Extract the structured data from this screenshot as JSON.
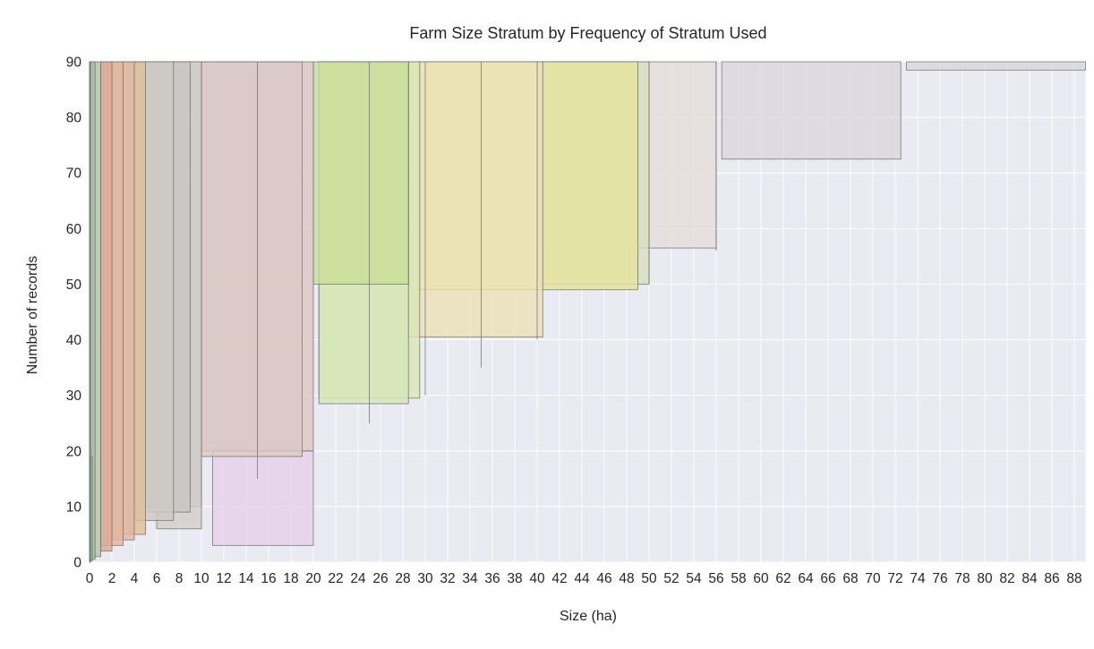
{
  "chart_data": {
    "type": "bar",
    "title": "Farm Size Stratum by Frequency of Stratum Used",
    "xlabel": "Size (ha)",
    "ylabel": "Number of records",
    "xlim": [
      0,
      89
    ],
    "ylim": [
      0,
      90
    ],
    "xticks": [
      "0",
      "2",
      "4",
      "6",
      "8",
      "10",
      "12",
      "14",
      "16",
      "18",
      "20",
      "22",
      "24",
      "26",
      "28",
      "30",
      "32",
      "34",
      "36",
      "38",
      "40",
      "42",
      "44",
      "46",
      "48",
      "50",
      "52",
      "54",
      "56",
      "58",
      "60",
      "62",
      "64",
      "66",
      "68",
      "70",
      "72",
      "74",
      "76",
      "78",
      "80",
      "82",
      "84",
      "86",
      "88"
    ],
    "yticks": [
      "0",
      "10",
      "20",
      "30",
      "40",
      "50",
      "60",
      "70",
      "80",
      "90"
    ],
    "grid": true,
    "background_color": "#eaeaf2",
    "rects": [
      {
        "x0": 73,
        "x1": 89,
        "y0": 88.5,
        "y1": 90,
        "color": "#d9d7dc"
      },
      {
        "x0": 56.5,
        "x1": 72.5,
        "y0": 72.5,
        "y1": 90,
        "color": "#dad7dc"
      },
      {
        "x0": 40,
        "x1": 56,
        "y0": 56.5,
        "y1": 90,
        "color": "#e3ddd8"
      },
      {
        "x0": 40.5,
        "x1": 50,
        "y0": 50,
        "y1": 90,
        "color": "#d8dfbd"
      },
      {
        "x0": 29.5,
        "x1": 49,
        "y0": 49,
        "y1": 90,
        "color": "#e5e39e"
      },
      {
        "x0": 28.5,
        "x1": 40.5,
        "y0": 40.5,
        "y1": 90,
        "color": "#ece1b6"
      },
      {
        "x0": 20.5,
        "x1": 29.5,
        "y0": 29.5,
        "y1": 90,
        "color": "#d9e7b3"
      },
      {
        "x0": 20.5,
        "x1": 28.5,
        "y0": 28.5,
        "y1": 90,
        "color": "#d6e6b8"
      },
      {
        "x0": 20,
        "x1": 28.5,
        "y0": 50,
        "y1": 90,
        "color": "#c9df96"
      },
      {
        "x0": 11,
        "x1": 20,
        "y0": 3,
        "y1": 20,
        "color": "#e6d0e8"
      },
      {
        "x0": 10,
        "x1": 20,
        "y0": 20,
        "y1": 90,
        "color": "#dcc5c0"
      },
      {
        "x0": 10,
        "x1": 19,
        "y0": 19,
        "y1": 90,
        "color": "#dbc9c4"
      },
      {
        "x0": 5,
        "x1": 10,
        "y0": 10,
        "y1": 90,
        "color": "#cbc5c0"
      },
      {
        "x0": 6,
        "x1": 10,
        "y0": 6,
        "y1": 90,
        "color": "#d2cdc8"
      },
      {
        "x0": 4,
        "x1": 9,
        "y0": 9,
        "y1": 90,
        "color": "#c9c6c1"
      },
      {
        "x0": 4,
        "x1": 7.5,
        "y0": 7.5,
        "y1": 90,
        "color": "#cec9c4"
      },
      {
        "x0": 3,
        "x1": 5,
        "y0": 5,
        "y1": 90,
        "color": "#e0be96"
      },
      {
        "x0": 2,
        "x1": 4,
        "y0": 4,
        "y1": 90,
        "color": "#dfb8a4"
      },
      {
        "x0": 1,
        "x1": 3,
        "y0": 3,
        "y1": 90,
        "color": "#e2b59f"
      },
      {
        "x0": 1,
        "x1": 2,
        "y0": 2,
        "y1": 90,
        "color": "#dda895"
      },
      {
        "x0": 0.25,
        "x1": 1,
        "y0": 1,
        "y1": 90,
        "color": "#b6c4a2"
      },
      {
        "x0": 0,
        "x1": 0.5,
        "y0": 0.5,
        "y1": 90,
        "color": "#a8c0a0"
      },
      {
        "x0": 0,
        "x1": 0.25,
        "y0": 0.25,
        "y1": 19,
        "color": "#9fbfa3"
      },
      {
        "x0": 0,
        "x1": 0.1,
        "y0": 0,
        "y1": 90,
        "color": "#6f9f7e"
      }
    ],
    "vlines": [
      {
        "x": 15,
        "y0": 15,
        "y1": 90
      },
      {
        "x": 25,
        "y0": 25,
        "y1": 90
      },
      {
        "x": 30,
        "y0": 30,
        "y1": 90
      },
      {
        "x": 35,
        "y0": 35,
        "y1": 90
      },
      {
        "x": 40,
        "y0": 40,
        "y1": 90
      },
      {
        "x": 50,
        "y0": 50,
        "y1": 90
      },
      {
        "x": 56,
        "y0": 56,
        "y1": 90
      }
    ]
  }
}
